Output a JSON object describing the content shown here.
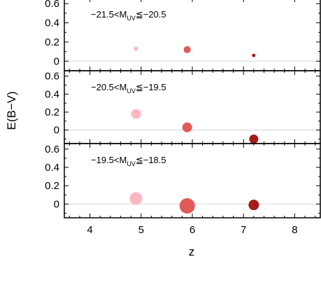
{
  "chart_data": {
    "type": "scatter",
    "xlabel": "z",
    "ylabel": "E(B−V)",
    "xlim": [
      3.5,
      8.5
    ],
    "x_ticks": [
      "4",
      "5",
      "6",
      "7",
      "8"
    ],
    "y_ticks": [
      "0",
      "0.2",
      "0.4",
      "0.6"
    ],
    "grid": false,
    "reference_line_y": 0,
    "colors": [
      "#ffb6c1",
      "#e05a5a",
      "#aa1a1a"
    ],
    "panels": [
      {
        "label": {
          "prefix": "−21.5<M",
          "sub": "UV",
          "suffix": "≦−20.5"
        },
        "ylim": [
          -0.1,
          0.66
        ],
        "points": [
          {
            "x": 4.9,
            "y": 0.13,
            "size": 3,
            "color": "#ffb6c1"
          },
          {
            "x": 5.9,
            "y": 0.12,
            "size": 5,
            "color": "#e05a5a"
          },
          {
            "x": 7.2,
            "y": 0.06,
            "size": 2.5,
            "color": "#aa1a1a"
          }
        ]
      },
      {
        "label": {
          "prefix": "−20.5<M",
          "sub": "UV",
          "suffix": "≦−19.5"
        },
        "ylim": [
          -0.15,
          0.66
        ],
        "points": [
          {
            "x": 4.9,
            "y": 0.18,
            "size": 7,
            "color": "#ffb6c1"
          },
          {
            "x": 5.9,
            "y": 0.03,
            "size": 7,
            "color": "#e05a5a"
          },
          {
            "x": 7.2,
            "y": -0.1,
            "size": 6.5,
            "color": "#aa1a1a"
          }
        ]
      },
      {
        "label": {
          "prefix": "−19.5<M",
          "sub": "UV",
          "suffix": "≦−18.5"
        },
        "ylim": [
          -0.15,
          0.66
        ],
        "points": [
          {
            "x": 4.9,
            "y": 0.06,
            "size": 9,
            "color": "#ffb6c1"
          },
          {
            "x": 5.9,
            "y": -0.02,
            "size": 11,
            "color": "#e05a5a"
          },
          {
            "x": 7.2,
            "y": -0.01,
            "size": 7.5,
            "color": "#aa1a1a"
          }
        ]
      }
    ]
  }
}
